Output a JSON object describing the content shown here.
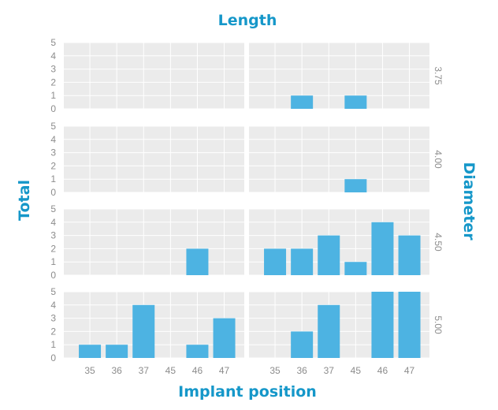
{
  "chart_data": {
    "type": "bar",
    "title": "Length",
    "xlabel": "Implant position",
    "ylabel": "Total",
    "facet_row_label": "Diameter",
    "categories": [
      "35",
      "36",
      "37",
      "45",
      "46",
      "47"
    ],
    "yticks": [
      "0",
      "1",
      "2",
      "3",
      "4",
      "5"
    ],
    "ylim": [
      0,
      5
    ],
    "grid": true,
    "bar_color": "#4db3e2",
    "panel_background": "#ebebeb",
    "rows": [
      {
        "label": "3.75",
        "panels": [
          {
            "values": [
              0,
              0,
              0,
              0,
              0,
              0
            ]
          },
          {
            "values": [
              0,
              1,
              0,
              1,
              0,
              0
            ]
          }
        ]
      },
      {
        "label": "4.00",
        "panels": [
          {
            "values": [
              0,
              0,
              0,
              0,
              0,
              0
            ]
          },
          {
            "values": [
              0,
              0,
              0,
              1,
              0,
              0
            ]
          }
        ]
      },
      {
        "label": "4.50",
        "panels": [
          {
            "values": [
              0,
              0,
              0,
              0,
              2,
              0
            ]
          },
          {
            "values": [
              2,
              2,
              3,
              1,
              4,
              3
            ]
          }
        ]
      },
      {
        "label": "5.00",
        "panels": [
          {
            "values": [
              1,
              1,
              4,
              0,
              1,
              3
            ]
          },
          {
            "values": [
              0,
              2,
              4,
              0,
              5,
              5
            ]
          }
        ]
      }
    ]
  }
}
